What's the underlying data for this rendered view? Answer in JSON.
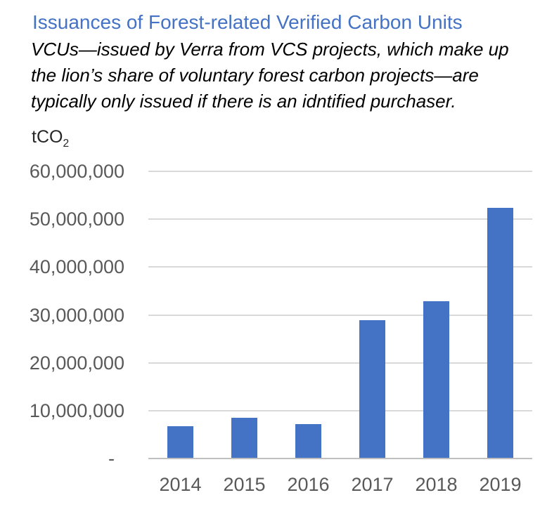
{
  "chart_data": {
    "type": "bar",
    "title": "Issuances of Forest-related Verified Carbon Units",
    "subtitle": "VCUs—issued by Verra from VCS projects, which make up\nthe lion’s share of voluntary forest carbon projects—are\ntypically only issued if there is an idntified purchaser.",
    "unit_label": {
      "base": "tCO",
      "sub": "2"
    },
    "categories": [
      "2014",
      "2015",
      "2016",
      "2017",
      "2018",
      "2019"
    ],
    "values": [
      6600000,
      8300000,
      7000000,
      28800000,
      32700000,
      52200000
    ],
    "xlabel": "",
    "ylabel": "tCO2",
    "ylim": [
      0,
      60000000
    ],
    "ytick_interval": 10000000,
    "yticks": [
      {
        "value": 60000000,
        "label": "60,000,000"
      },
      {
        "value": 50000000,
        "label": "50,000,000"
      },
      {
        "value": 40000000,
        "label": "40,000,000"
      },
      {
        "value": 30000000,
        "label": "30,000,000"
      },
      {
        "value": 20000000,
        "label": "20,000,000"
      },
      {
        "value": 10000000,
        "label": "10,000,000"
      },
      {
        "value": 0,
        "label": "-"
      }
    ],
    "grid": true,
    "legend": "none",
    "bar_color": "#4472C4"
  },
  "colors": {
    "title": "#4472C4",
    "bar": "#4472C4",
    "gridline": "#D9D9D9",
    "axis_line": "#BFBFBF",
    "tick_text": "#595959",
    "body_text": "#000000"
  }
}
